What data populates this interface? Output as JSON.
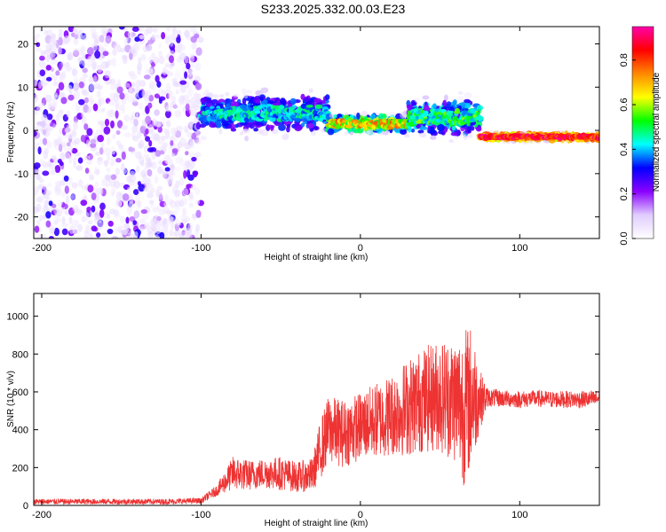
{
  "title": "S233.2025.332.00.03.E23",
  "chart_data": [
    {
      "type": "heatmap",
      "xlabel": "Height of straight line (km)",
      "ylabel": "Frequency (Hz)",
      "xlim": [
        -205,
        150
      ],
      "ylim": [
        -25,
        24
      ],
      "x_ticks": [
        -200,
        -100,
        0,
        100
      ],
      "y_ticks": [
        -20,
        -10,
        0,
        10,
        20
      ],
      "colorbar": {
        "label": "Normalized spectral amplitude",
        "range": [
          0,
          0.95
        ],
        "ticks": [
          0.0,
          0.2,
          0.4,
          0.6,
          0.8
        ],
        "colors": [
          "#ffffff",
          "#e0ccff",
          "#8a00ff",
          "#0000ff",
          "#00ffff",
          "#00ff00",
          "#ffff00",
          "#ff8800",
          "#ff0000",
          "#ff00aa"
        ]
      },
      "regions": [
        {
          "x": [
            -205,
            -100
          ],
          "description": "broadband scatter",
          "freq_range": [
            -25,
            24
          ],
          "amplitude_range": [
            0.05,
            0.3
          ]
        },
        {
          "x": [
            -100,
            -20
          ],
          "center_freq": 4,
          "spread": 4,
          "amplitude_range": [
            0.2,
            0.5
          ]
        },
        {
          "x": [
            -20,
            30
          ],
          "center_freq": 1.5,
          "spread": 2,
          "amplitude_range": [
            0.3,
            0.8
          ]
        },
        {
          "x": [
            30,
            75
          ],
          "center_freq": 3,
          "spread": 4,
          "amplitude_range": [
            0.2,
            0.6
          ]
        },
        {
          "x": [
            75,
            150
          ],
          "center_freq": -1.5,
          "spread": 0.8,
          "amplitude_range": [
            0.6,
            0.95
          ]
        }
      ]
    },
    {
      "type": "line",
      "xlabel": "Height of straight line (km)",
      "ylabel": "SNR (10 * v/v)",
      "xlim": [
        -205,
        150
      ],
      "ylim": [
        0,
        1120
      ],
      "x_ticks": [
        -200,
        -100,
        0,
        100
      ],
      "y_ticks": [
        0,
        200,
        400,
        600,
        800,
        1000
      ],
      "series": [
        {
          "color": "#ee3333",
          "x": [
            -205,
            -180,
            -150,
            -120,
            -100,
            -90,
            -80,
            -70,
            -60,
            -50,
            -40,
            -30,
            -25,
            -20,
            -10,
            0,
            10,
            20,
            30,
            40,
            50,
            60,
            65,
            70,
            75,
            80,
            90,
            100,
            110,
            120,
            130,
            140,
            150
          ],
          "values": [
            20,
            20,
            20,
            20,
            25,
            80,
            170,
            160,
            170,
            170,
            150,
            160,
            300,
            400,
            380,
            420,
            450,
            480,
            520,
            560,
            580,
            560,
            520,
            580,
            560,
            570,
            565,
            560,
            565,
            560,
            560,
            560,
            565
          ],
          "noise_amplitude": [
            15,
            15,
            15,
            15,
            15,
            30,
            90,
            80,
            80,
            90,
            80,
            90,
            160,
            180,
            180,
            180,
            200,
            220,
            260,
            280,
            300,
            340,
            420,
            380,
            160,
            50,
            45,
            45,
            45,
            45,
            45,
            45,
            45
          ]
        }
      ]
    }
  ]
}
